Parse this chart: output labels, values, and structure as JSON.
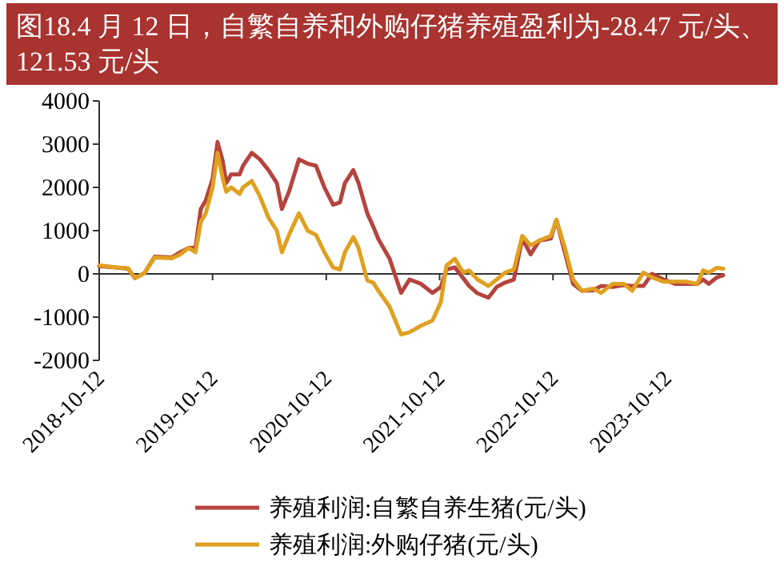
{
  "chart_data": {
    "type": "line",
    "title": "图18.4 月 12 日，自繁自养和外购仔猪养殖盈利为-28.47 元/头、121.53 元/头",
    "x": [
      "2018-10-12",
      "2018-12-05",
      "2019-01-13",
      "2019-02-04",
      "2019-03-07",
      "2019-04-09",
      "2019-06-03",
      "2019-06-30",
      "2019-07-27",
      "2019-08-18",
      "2019-09-04",
      "2019-09-20",
      "2019-10-12",
      "2019-10-28",
      "2019-11-14",
      "2019-11-25",
      "2019-12-11",
      "2020-01-07",
      "2020-01-18",
      "2020-02-15",
      "2020-03-12",
      "2020-04-09",
      "2020-05-06",
      "2020-05-22",
      "2020-06-14",
      "2020-07-16",
      "2020-08-13",
      "2020-09-09",
      "2020-10-06",
      "2020-11-03",
      "2020-11-25",
      "2020-12-11",
      "2021-01-07",
      "2021-01-24",
      "2021-02-21",
      "2021-03-12",
      "2021-03-29",
      "2021-05-04",
      "2021-06-10",
      "2021-07-07",
      "2021-08-13",
      "2021-09-19",
      "2021-10-16",
      "2021-11-03",
      "2021-11-30",
      "2021-12-27",
      "2022-01-15",
      "2022-02-11",
      "2022-03-18",
      "2022-04-14",
      "2022-05-11",
      "2022-06-08",
      "2022-07-05",
      "2022-08-01",
      "2022-08-29",
      "2022-10-05",
      "2022-10-23",
      "2022-11-19",
      "2022-12-16",
      "2023-01-13",
      "2023-02-19",
      "2023-03-16",
      "2023-04-22",
      "2023-05-28",
      "2023-06-24",
      "2023-07-30",
      "2023-08-27",
      "2023-10-03",
      "2023-11-09",
      "2023-12-15",
      "2024-01-20",
      "2024-02-07",
      "2024-02-26",
      "2024-03-23",
      "2024-04-12"
    ],
    "series": [
      {
        "name": "养殖利润:自繁自养生猪(元/头)",
        "color": "#b5443e",
        "values": [
          180,
          150,
          120,
          -100,
          20,
          400,
          380,
          500,
          600,
          600,
          1500,
          1700,
          2200,
          3050,
          2600,
          2100,
          2300,
          2300,
          2500,
          2800,
          2650,
          2400,
          2100,
          1500,
          1900,
          2650,
          2550,
          2500,
          2000,
          1600,
          1650,
          2100,
          2400,
          2100,
          1400,
          1100,
          800,
          350,
          -440,
          -130,
          -230,
          -440,
          -300,
          100,
          150,
          -100,
          -280,
          -450,
          -550,
          -300,
          -200,
          -130,
          820,
          450,
          770,
          820,
          1250,
          500,
          -230,
          -390,
          -380,
          -280,
          -300,
          -260,
          -280,
          -280,
          0,
          -130,
          -230,
          -230,
          -230,
          -130,
          -230,
          -80,
          -30
        ]
      },
      {
        "name": "养殖利润:外购仔猪(元/头)",
        "color": "#e0a020",
        "values": [
          200,
          150,
          130,
          -100,
          20,
          380,
          360,
          450,
          600,
          500,
          1200,
          1400,
          2000,
          2800,
          2200,
          1900,
          2000,
          1850,
          2000,
          2150,
          1800,
          1300,
          1000,
          500,
          900,
          1400,
          1000,
          900,
          500,
          150,
          100,
          500,
          850,
          600,
          -150,
          -200,
          -390,
          -760,
          -1400,
          -1350,
          -1200,
          -1080,
          -650,
          190,
          350,
          30,
          80,
          -130,
          -280,
          -130,
          30,
          100,
          880,
          660,
          770,
          880,
          1250,
          610,
          -130,
          -390,
          -340,
          -440,
          -230,
          -230,
          -390,
          30,
          -80,
          -180,
          -180,
          -180,
          -230,
          80,
          30,
          140,
          120
        ]
      }
    ],
    "xlim": [
      "2018-10-12",
      "2024-04-12"
    ],
    "xticks": [
      "2018-10-12",
      "2019-10-12",
      "2020-10-12",
      "2021-10-12",
      "2022-10-12",
      "2023-10-12"
    ],
    "ylim": [
      -2000,
      4000
    ],
    "yticks": [
      -2000,
      -1000,
      0,
      1000,
      2000,
      3000,
      4000
    ],
    "legend": "bottom",
    "marker": "none",
    "line_style": "solid"
  }
}
